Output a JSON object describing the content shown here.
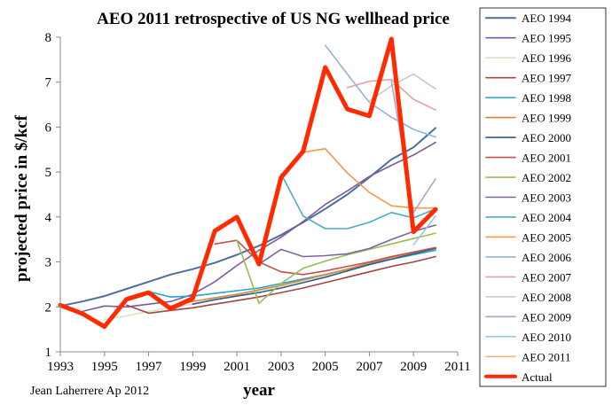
{
  "chart_data": {
    "type": "line",
    "title": "AEO 2011 retrospective of US NG wellhead price",
    "xlabel": "year",
    "ylabel": "projected price in $/kcf",
    "credit": "Jean Laherrere Ap 2012",
    "xlim": [
      1993,
      2011
    ],
    "ylim": [
      1,
      8
    ],
    "xticks": [
      1993,
      1995,
      1997,
      1999,
      2001,
      2003,
      2005,
      2007,
      2009,
      2011
    ],
    "yticks": [
      1,
      2,
      3,
      4,
      5,
      6,
      7,
      8
    ],
    "grid": false,
    "legend_position": "right",
    "series": [
      {
        "name": "AEO 1994",
        "color": "#4a6f9b",
        "width": 2,
        "x": [
          1993,
          1994,
          1995,
          1996,
          1997,
          1998,
          1999,
          2000,
          2001,
          2002,
          2003,
          2004,
          2005,
          2006,
          2007,
          2008,
          2009,
          2010
        ],
        "y": [
          2.02,
          2.12,
          2.24,
          2.4,
          2.56,
          2.72,
          2.84,
          2.98,
          3.16,
          3.36,
          3.6,
          3.88,
          4.18,
          4.5,
          4.88,
          5.28,
          5.55,
          5.98
        ]
      },
      {
        "name": "AEO 1995",
        "color": "#7b5a9e",
        "width": 1.6,
        "x": [
          1994,
          1995,
          1996,
          1997,
          1998,
          1999,
          2000,
          2001,
          2002,
          2003,
          2004,
          2005,
          2006,
          2007,
          2008,
          2009,
          2010
        ],
        "y": [
          1.9,
          2.02,
          2.0,
          2.06,
          2.12,
          2.28,
          2.56,
          2.92,
          3.26,
          3.55,
          3.9,
          4.28,
          4.58,
          4.9,
          5.15,
          5.38,
          5.66
        ]
      },
      {
        "name": "AEO 1996",
        "color": "#d6e4c6",
        "width": 1.6,
        "x": [
          1995,
          1996,
          1997,
          1998,
          1999,
          2000,
          2001,
          2002,
          2003,
          2004,
          2005,
          2006,
          2007,
          2008,
          2009,
          2010
        ],
        "y": [
          1.72,
          1.8,
          1.9,
          1.98,
          2.06,
          2.16,
          2.26,
          2.36,
          2.46,
          2.58,
          2.7,
          2.82,
          2.94,
          3.06,
          3.18,
          3.3
        ]
      },
      {
        "name": "AEO 1997",
        "color": "#a04545",
        "width": 1.6,
        "x": [
          1996,
          1997,
          1998,
          1999,
          2000,
          2001,
          2002,
          2003,
          2004,
          2005,
          2006,
          2007,
          2008,
          2009,
          2010
        ],
        "y": [
          2.04,
          1.86,
          1.92,
          1.98,
          2.06,
          2.14,
          2.22,
          2.32,
          2.42,
          2.54,
          2.66,
          2.78,
          2.9,
          3.0,
          3.12
        ]
      },
      {
        "name": "AEO 1998",
        "color": "#1fa5d6",
        "width": 1.6,
        "x": [
          1997,
          1998,
          1999,
          2000,
          2001,
          2002,
          2003,
          2004,
          2005,
          2006,
          2007,
          2008,
          2009,
          2010
        ],
        "y": [
          2.34,
          2.22,
          2.24,
          2.3,
          2.36,
          2.42,
          2.52,
          2.62,
          2.72,
          2.84,
          2.96,
          3.06,
          3.16,
          3.26
        ]
      },
      {
        "name": "AEO 1999",
        "color": "#e0843a",
        "width": 1.6,
        "x": [
          1998,
          1999,
          2000,
          2001,
          2002,
          2003,
          2004,
          2005,
          2006,
          2007,
          2008,
          2009,
          2010
        ],
        "y": [
          2.02,
          2.12,
          2.2,
          2.28,
          2.38,
          2.48,
          2.6,
          2.72,
          2.84,
          2.98,
          3.1,
          3.2,
          3.3
        ]
      },
      {
        "name": "AEO 2000",
        "color": "#2f5d8a",
        "width": 1.6,
        "x": [
          1999,
          2000,
          2001,
          2002,
          2003,
          2004,
          2005,
          2006,
          2007,
          2008,
          2009,
          2010
        ],
        "y": [
          2.06,
          2.16,
          2.24,
          2.32,
          2.42,
          2.54,
          2.66,
          2.8,
          2.94,
          3.06,
          3.18,
          3.3
        ]
      },
      {
        "name": "AEO 2001",
        "color": "#c0504d",
        "width": 1.6,
        "x": [
          2000,
          2001,
          2002,
          2003,
          2004,
          2005,
          2006,
          2007,
          2008,
          2009,
          2010
        ],
        "y": [
          3.4,
          3.48,
          3.0,
          2.78,
          2.72,
          2.8,
          2.9,
          3.0,
          3.12,
          3.22,
          3.32
        ]
      },
      {
        "name": "AEO 2002",
        "color": "#9bbb59",
        "width": 1.6,
        "x": [
          2001,
          2002,
          2003,
          2004,
          2005,
          2006,
          2007,
          2008,
          2009,
          2010
        ],
        "y": [
          3.48,
          2.08,
          2.52,
          2.86,
          3.02,
          3.16,
          3.28,
          3.4,
          3.52,
          3.64
        ]
      },
      {
        "name": "AEO 2003",
        "color": "#8064a2",
        "width": 1.6,
        "x": [
          2002,
          2003,
          2004,
          2005,
          2006,
          2007,
          2008,
          2009,
          2010
        ],
        "y": [
          2.95,
          3.28,
          3.12,
          3.14,
          3.18,
          3.3,
          3.5,
          3.68,
          3.82
        ]
      },
      {
        "name": "AEO 2004",
        "color": "#4bacc6",
        "width": 1.6,
        "x": [
          2003,
          2004,
          2005,
          2006,
          2007,
          2008,
          2009,
          2010
        ],
        "y": [
          4.96,
          4.02,
          3.74,
          3.74,
          3.88,
          4.1,
          3.98,
          4.18
        ]
      },
      {
        "name": "AEO 2005",
        "color": "#f79646",
        "width": 1.6,
        "x": [
          2004,
          2005,
          2006,
          2007,
          2008,
          2009,
          2010
        ],
        "y": [
          5.44,
          5.52,
          4.98,
          4.55,
          4.25,
          4.2,
          4.2
        ]
      },
      {
        "name": "AEO 2006",
        "color": "#95b3d7",
        "width": 1.6,
        "x": [
          2005,
          2006,
          2007,
          2008,
          2009,
          2010
        ],
        "y": [
          7.82,
          7.18,
          6.55,
          6.22,
          5.95,
          5.78
        ]
      },
      {
        "name": "AEO 2007",
        "color": "#e6a0a0",
        "width": 1.6,
        "x": [
          2006,
          2007,
          2008,
          2009,
          2010
        ],
        "y": [
          6.88,
          7.02,
          7.06,
          6.62,
          6.38
        ]
      },
      {
        "name": "AEO 2008",
        "color": "#c8c8c8",
        "width": 1.6,
        "x": [
          2007,
          2008,
          2009,
          2010
        ],
        "y": [
          6.58,
          6.92,
          7.18,
          6.85
        ]
      },
      {
        "name": "AEO 2009",
        "color": "#b3a2c7",
        "width": 1.6,
        "x": [
          2008,
          2009,
          2010
        ],
        "y": [
          7.02,
          4.1,
          4.85
        ]
      },
      {
        "name": "AEO 2010",
        "color": "#93cddd",
        "width": 1.6,
        "x": [
          2009,
          2010
        ],
        "y": [
          3.38,
          4.02
        ]
      },
      {
        "name": "AEO 2011",
        "color": "#f4b183",
        "width": 1.6,
        "x": [
          2009,
          2010
        ],
        "y": [
          3.72,
          4.2
        ]
      },
      {
        "name": "Actual",
        "color": "#ff2a00",
        "width": 5,
        "x": [
          1993,
          1994,
          1995,
          1996,
          1997,
          1998,
          1999,
          2000,
          2001,
          2002,
          2003,
          2004,
          2005,
          2006,
          2007,
          2008,
          2009,
          2010
        ],
        "y": [
          2.04,
          1.85,
          1.56,
          2.17,
          2.32,
          1.96,
          2.19,
          3.69,
          4.0,
          2.95,
          4.88,
          5.46,
          7.33,
          6.4,
          6.25,
          7.96,
          3.67,
          4.17
        ]
      }
    ]
  }
}
